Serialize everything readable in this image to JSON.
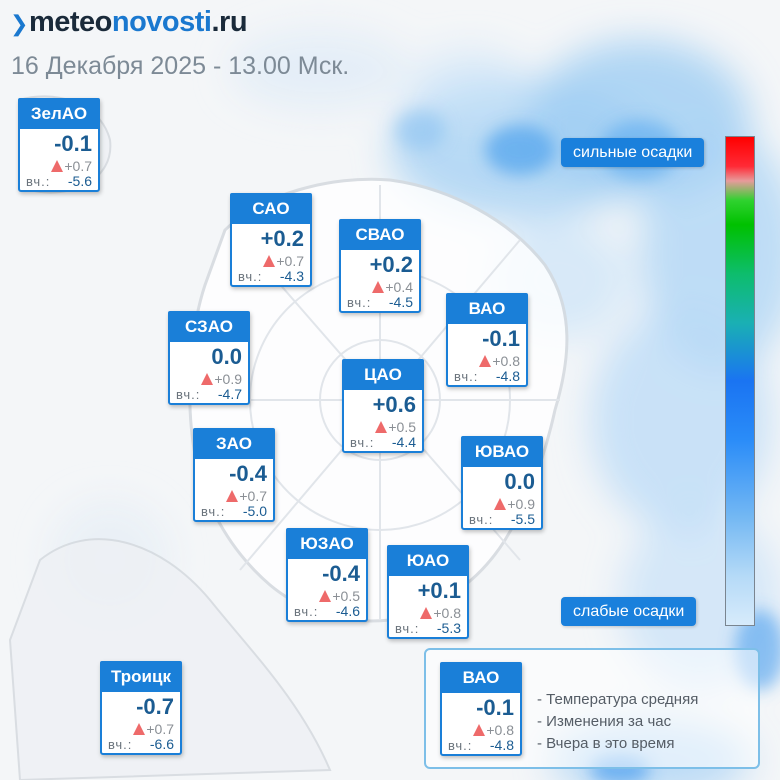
{
  "header": {
    "logo": {
      "pre": "meteo",
      "mid": "novosti",
      "post": ".ru"
    },
    "datetime": "16 Декабря 2025 - 13.00 Мск."
  },
  "districts": [
    {
      "name": "ЗелАО",
      "temp": "-0.1",
      "change": "+0.7",
      "yesterday_label": "вч.:",
      "yesterday": "-5.6"
    },
    {
      "name": "САО",
      "temp": "+0.2",
      "change": "+0.7",
      "yesterday_label": "вч.:",
      "yesterday": "-4.3"
    },
    {
      "name": "СВАО",
      "temp": "+0.2",
      "change": "+0.4",
      "yesterday_label": "вч.:",
      "yesterday": "-4.5"
    },
    {
      "name": "СЗАО",
      "temp": "0.0",
      "change": "+0.9",
      "yesterday_label": "вч.:",
      "yesterday": "-4.7"
    },
    {
      "name": "ВАО",
      "temp": "-0.1",
      "change": "+0.8",
      "yesterday_label": "вч.:",
      "yesterday": "-4.8"
    },
    {
      "name": "ЦАО",
      "temp": "+0.6",
      "change": "+0.5",
      "yesterday_label": "вч.:",
      "yesterday": "-4.4"
    },
    {
      "name": "ЗАО",
      "temp": "-0.4",
      "change": "+0.7",
      "yesterday_label": "вч.:",
      "yesterday": "-5.0"
    },
    {
      "name": "ЮВАО",
      "temp": "0.0",
      "change": "+0.9",
      "yesterday_label": "вч.:",
      "yesterday": "-5.5"
    },
    {
      "name": "ЮЗАО",
      "temp": "-0.4",
      "change": "+0.5",
      "yesterday_label": "вч.:",
      "yesterday": "-4.6"
    },
    {
      "name": "ЮАО",
      "temp": "+0.1",
      "change": "+0.8",
      "yesterday_label": "вч.:",
      "yesterday": "-5.3"
    },
    {
      "name": "Троицк",
      "temp": "-0.7",
      "change": "+0.7",
      "yesterday_label": "вч.:",
      "yesterday": "-6.6"
    }
  ],
  "precip_scale": {
    "strong_label": "сильные осадки",
    "weak_label": "слабые осадки",
    "colors": {
      "top": "#ff0000",
      "green": "#00c100",
      "blue": "#1a74f2",
      "bottom": "#d7ebfb"
    }
  },
  "legend": {
    "sample": {
      "name": "ВАО",
      "temp": "-0.1",
      "change": "+0.8",
      "yesterday_label": "вч.:",
      "yesterday": "-4.8"
    },
    "items": [
      "- Температура средняя",
      "- Изменения за час",
      "- Вчера в это время"
    ]
  },
  "colors": {
    "accent": "#1a7fd8",
    "temp_text": "#1b5c92",
    "change_up": "#ee6a6a"
  }
}
